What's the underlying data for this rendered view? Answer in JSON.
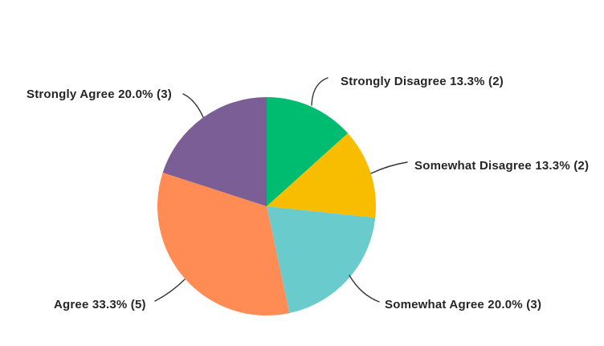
{
  "chart_data": {
    "type": "pie",
    "title": "",
    "start_angle_deg": 0,
    "direction": "clockwise",
    "slices": [
      {
        "label": "Strongly Disagree",
        "percent": 13.3,
        "count": 2,
        "color": "#00BC70",
        "full_label": "Strongly Disagree 13.3% (2)"
      },
      {
        "label": "Somewhat Disagree",
        "percent": 13.3,
        "count": 2,
        "color": "#F9BD00",
        "full_label": "Somewhat Disagree 13.3% (2)"
      },
      {
        "label": "Somewhat Agree",
        "percent": 20.0,
        "count": 3,
        "color": "#69CBCB",
        "full_label": "Somewhat Agree 20.0% (3)"
      },
      {
        "label": "Agree",
        "percent": 33.3,
        "count": 5,
        "color": "#FF8C55",
        "full_label": "Agree 33.3% (5)"
      },
      {
        "label": "Strongly Agree",
        "percent": 20.0,
        "count": 3,
        "color": "#7B5E96",
        "full_label": "Strongly Agree 20.0% (3)"
      }
    ],
    "legend_position": "none",
    "labels_style": "outside-with-leader-lines"
  },
  "styles": {
    "background": "#FFFFFF",
    "leader_line_color": "#333333",
    "label_text_color": "#262626"
  }
}
